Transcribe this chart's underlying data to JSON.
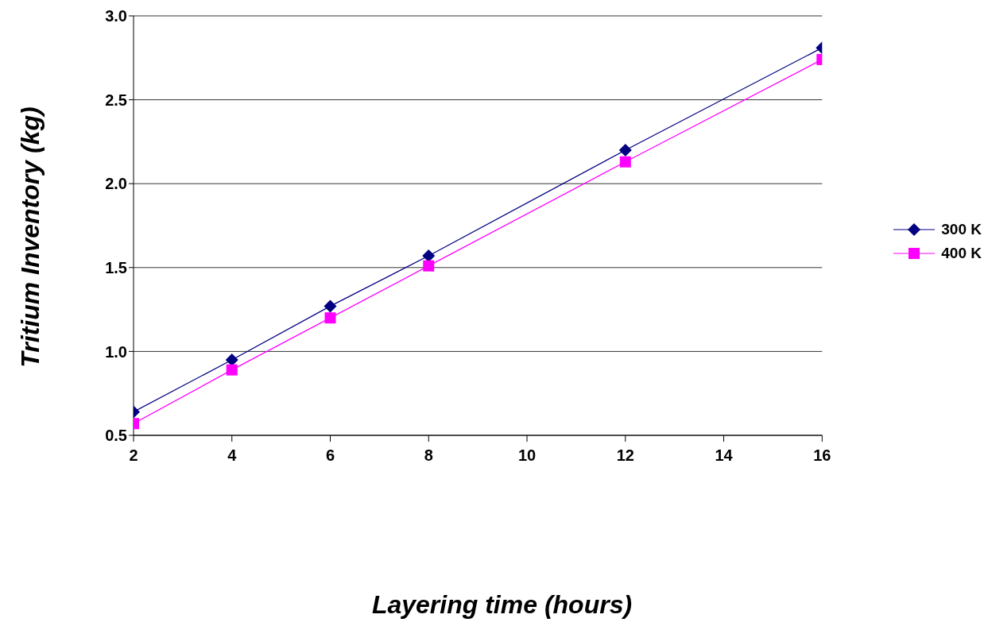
{
  "chart_data": {
    "type": "line",
    "xlabel": "Layering time (hours)",
    "ylabel": "Tritium Inventory (kg)",
    "x": [
      2,
      4,
      6,
      8,
      12,
      16
    ],
    "series": [
      {
        "name": "300 K",
        "color": "#000080",
        "marker": "diamond",
        "values": [
          0.64,
          0.95,
          1.27,
          1.57,
          2.2,
          2.81
        ]
      },
      {
        "name": "400 K",
        "color": "#ff00ff",
        "marker": "square",
        "values": [
          0.57,
          0.89,
          1.2,
          1.51,
          2.13,
          2.74
        ]
      }
    ],
    "xlim": [
      2,
      16
    ],
    "xticks": [
      2,
      4,
      6,
      8,
      10,
      12,
      14,
      16
    ],
    "ylim": [
      0.5,
      3.0
    ],
    "yticks": [
      {
        "value": 0.5,
        "label": "0.5"
      },
      {
        "value": 1.0,
        "label": "1.0"
      },
      {
        "value": 1.5,
        "label": "1.5"
      },
      {
        "value": 2.0,
        "label": "2.0"
      },
      {
        "value": 2.5,
        "label": "2.5"
      },
      {
        "value": 3.0,
        "label": "3.0"
      }
    ],
    "grid": "y",
    "legend": "right",
    "line_style": "solid"
  }
}
